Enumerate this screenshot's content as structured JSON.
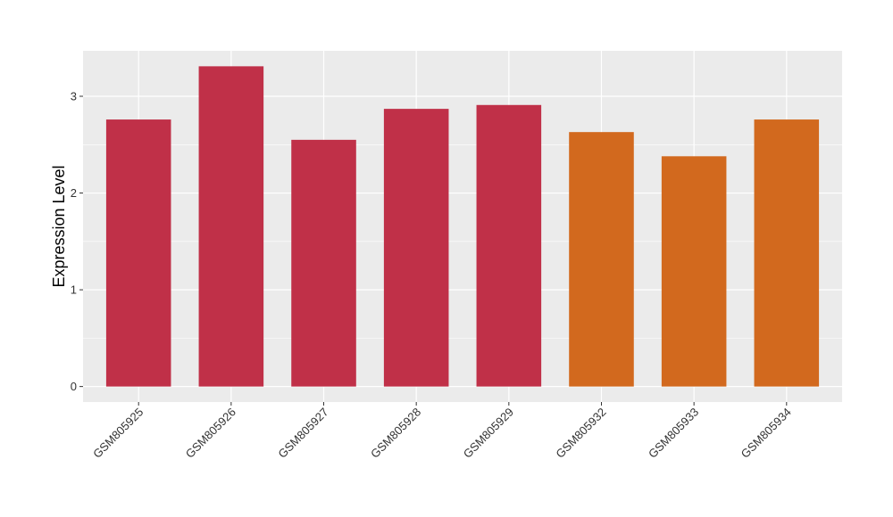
{
  "chart_data": {
    "type": "bar",
    "title": "",
    "xlabel": "",
    "ylabel": "Expression Level",
    "categories": [
      "GSM805925",
      "GSM805926",
      "GSM805927",
      "GSM805928",
      "GSM805929",
      "GSM805932",
      "GSM805933",
      "GSM805934"
    ],
    "values": [
      2.76,
      3.31,
      2.55,
      2.87,
      2.91,
      2.63,
      2.38,
      2.76
    ],
    "bar_colors": [
      "#C03048",
      "#C03048",
      "#C03048",
      "#C03048",
      "#C03048",
      "#D2691E",
      "#D2691E",
      "#D2691E"
    ],
    "ylim": [
      -0.16,
      3.47
    ],
    "yticks": [
      0,
      1,
      2,
      3
    ],
    "ytick_labels": [
      "0",
      "1",
      "2",
      "3"
    ],
    "grid": true,
    "legend": "none",
    "panel_background": "#EBEBEB",
    "grid_color": "#FFFFFF"
  }
}
